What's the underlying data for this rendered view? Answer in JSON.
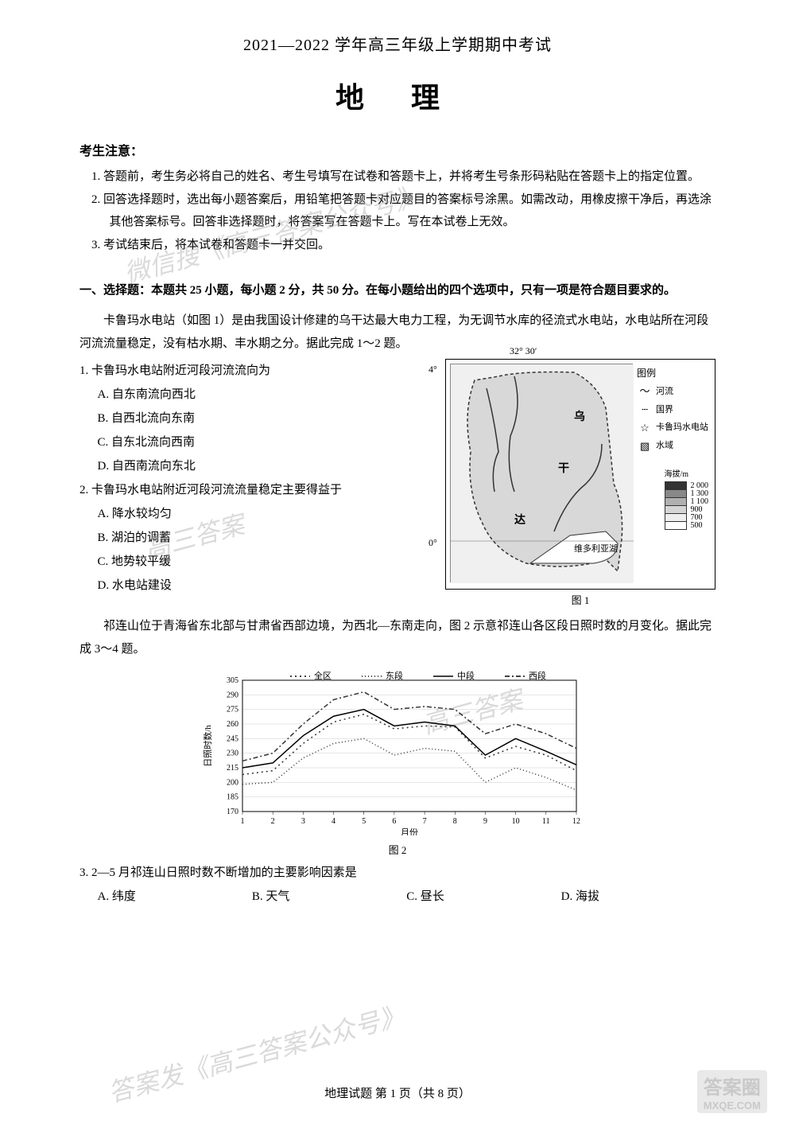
{
  "header": {
    "year_line": "2021—2022 学年高三年级上学期期中考试",
    "subject": "地 理"
  },
  "notice": {
    "title": "考生注意：",
    "items": [
      "1. 答题前，考生务必将自己的姓名、考生号填写在试卷和答题卡上，并将考生号条形码粘贴在答题卡上的指定位置。",
      "2. 回答选择题时，选出每小题答案后，用铅笔把答题卡对应题目的答案标号涂黑。如需改动，用橡皮擦干净后，再选涂其他答案标号。回答非选择题时，将答案写在答题卡上。写在本试卷上无效。",
      "3. 考试结束后，将本试卷和答题卡一并交回。"
    ]
  },
  "section1": {
    "title": "一、选择题：本题共 25 小题，每小题 2 分，共 50 分。在每小题给出的四个选项中，只有一项是符合题目要求的。",
    "passage1": "卡鲁玛水电站（如图 1）是由我国设计修建的乌干达最大电力工程，为无调节水库的径流式水电站，水电站所在河段河流流量稳定，没有枯水期、丰水期之分。据此完成 1～2 题。",
    "q1": {
      "stem": "1. 卡鲁玛水电站附近河段河流流向为",
      "opts": {
        "a": "A. 自东南流向西北",
        "b": "B. 自西北流向东南",
        "c": "C. 自东北流向西南",
        "d": "D. 自西南流向东北"
      }
    },
    "q2": {
      "stem": "2. 卡鲁玛水电站附近河段河流流量稳定主要得益于",
      "opts": {
        "a": "A. 降水较均匀",
        "b": "B. 湖泊的调蓄",
        "c": "C. 地势较平缓",
        "d": "D. 水电站建设"
      }
    },
    "passage2": "祁连山位于青海省东北部与甘肃省西部边境，为西北—东南走向，图 2 示意祁连山各区段日照时数的月变化。据此完成 3～4 题。",
    "q3": {
      "stem": "3. 2—5 月祁连山日照时数不断增加的主要影响因素是",
      "opts": {
        "a": "A. 纬度",
        "b": "B. 天气",
        "c": "C. 昼长",
        "d": "D. 海拔"
      }
    }
  },
  "map": {
    "coord_top": "32° 30′",
    "coord_lat4": "4°",
    "coord_lat0": "0°",
    "legend_title": "图例",
    "legend_items": {
      "river": "河流",
      "border": "国界",
      "station": "卡鲁玛水电站",
      "water": "水域"
    },
    "elevation_title": "海拔/m",
    "elevation_values": [
      "2 000",
      "1 300",
      "1 100",
      "900",
      "700",
      "500"
    ],
    "elevation_colors": [
      "#333333",
      "#888888",
      "#b0b0b0",
      "#d5d5d5",
      "#eeeeee",
      "#ffffff"
    ],
    "labels": {
      "wu": "乌",
      "gan": "干",
      "da": "达",
      "lake": "维多利亚湖"
    },
    "caption": "图 1"
  },
  "chart": {
    "legend": {
      "all": "全区",
      "east": "东段",
      "mid": "中段",
      "west": "西段"
    },
    "ylabel": "日照时数/h",
    "xlabel": "月份",
    "ylim": [
      170,
      305
    ],
    "ytick_step": 15,
    "yticks": [
      "305",
      "290",
      "275",
      "260",
      "245",
      "230",
      "215",
      "200",
      "185",
      "170"
    ],
    "xticks": [
      "1",
      "2",
      "3",
      "4",
      "5",
      "6",
      "7",
      "8",
      "9",
      "10",
      "11",
      "12"
    ],
    "colors": {
      "all": "#333333",
      "east": "#333333",
      "mid": "#000000",
      "west": "#333333"
    },
    "series": {
      "all": [
        208,
        212,
        240,
        262,
        270,
        255,
        258,
        257,
        225,
        237,
        228,
        212
      ],
      "east": [
        198,
        200,
        225,
        240,
        245,
        228,
        235,
        232,
        200,
        215,
        205,
        192
      ],
      "mid": [
        215,
        220,
        248,
        268,
        275,
        258,
        262,
        258,
        228,
        245,
        232,
        218
      ],
      "west": [
        222,
        230,
        260,
        285,
        293,
        275,
        278,
        275,
        250,
        260,
        250,
        235
      ]
    },
    "caption": "图 2"
  },
  "footer": "地理试题  第 1 页（共 8 页）",
  "watermarks": {
    "w1": "微信搜《高三答案公众号》",
    "w2": "高三答案",
    "w3": "高三答案",
    "w4": "答案发《高三答案公众号》",
    "logo_top": "答案圈",
    "logo_bottom": "MXQE.COM"
  }
}
